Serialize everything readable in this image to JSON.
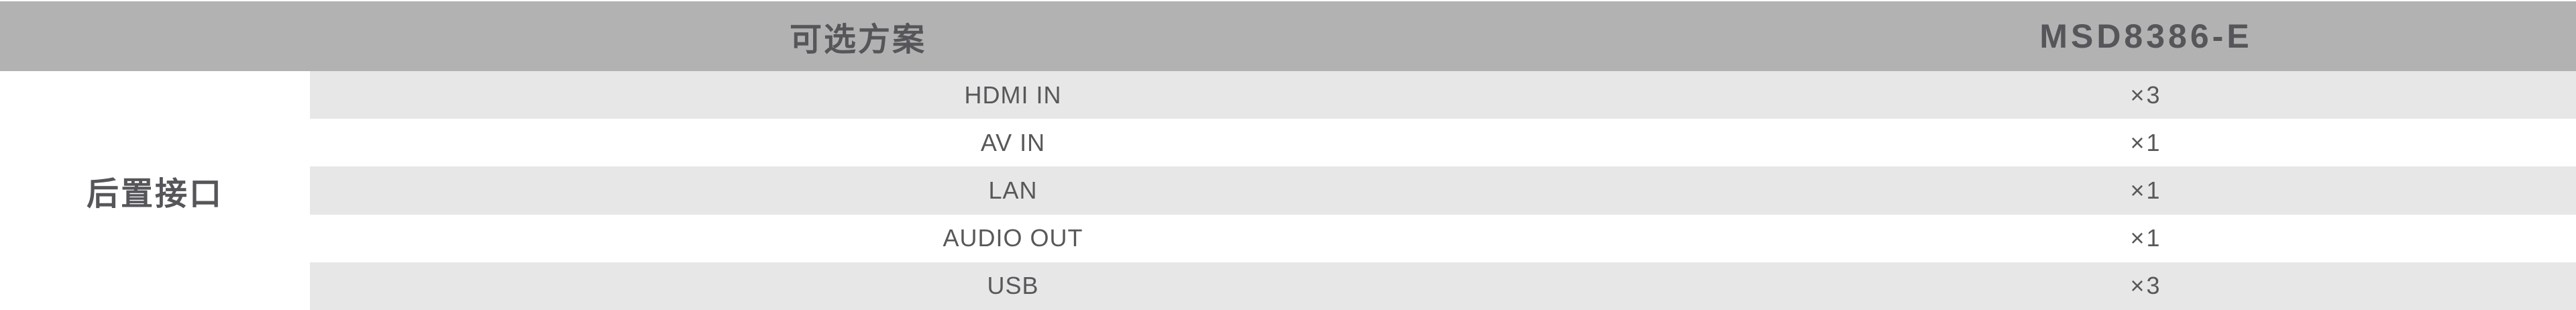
{
  "table": {
    "header": {
      "plan_label": "可选方案",
      "model_label": "MSD8386-E"
    },
    "row_group_label": "后置接口",
    "rows": [
      {
        "name": "HDMI IN",
        "count": "×3"
      },
      {
        "name": "AV IN",
        "count": "×1"
      },
      {
        "name": "LAN",
        "count": "×1"
      },
      {
        "name": "AUDIO OUT",
        "count": "×1"
      },
      {
        "name": "USB",
        "count": "×3"
      }
    ]
  },
  "colors": {
    "header_bg": "#b2b2b2",
    "stripe_bg": "#e7e7e7",
    "row_bg": "#ffffff",
    "header_text": "#56565a",
    "text": "#58585b"
  }
}
